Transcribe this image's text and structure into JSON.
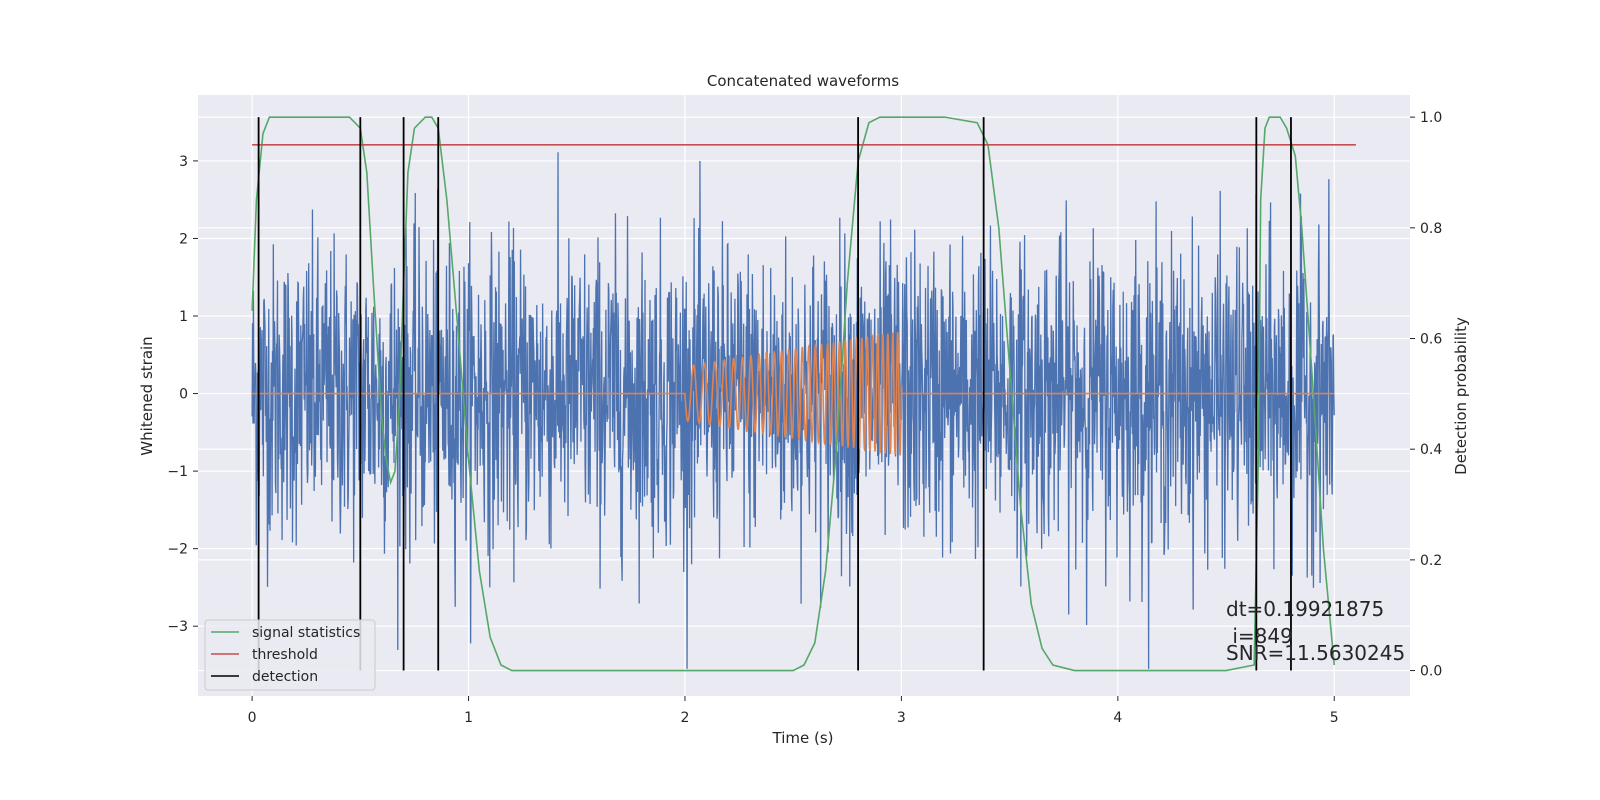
{
  "chart_data": {
    "type": "line",
    "title": "Concatenated waveforms",
    "xlabel": "Time (s)",
    "ylabel": "Whitened strain",
    "y2label": "Detection probability",
    "xlim": [
      -0.25,
      5.35
    ],
    "ylim": [
      -3.9,
      3.85
    ],
    "y2lim": [
      -0.046,
      1.04
    ],
    "x_ticks": [
      0,
      1,
      2,
      3,
      4,
      5
    ],
    "x_tick_labels": [
      "0",
      "1",
      "2",
      "3",
      "4",
      "5"
    ],
    "y_ticks": [
      -3,
      -2,
      -1,
      0,
      1,
      2,
      3
    ],
    "y_tick_labels": [
      "−3",
      "−2",
      "−1",
      "0",
      "1",
      "2",
      "3"
    ],
    "y2_ticks": [
      0.0,
      0.2,
      0.4,
      0.6,
      0.8,
      1.0
    ],
    "y2_tick_labels": [
      "0.0",
      "0.2",
      "0.4",
      "0.6",
      "0.8",
      "1.0"
    ],
    "grid": true,
    "legend_position": "bottom-left",
    "noise": {
      "t_start": 0,
      "t_end": 5,
      "sigma": 0.95,
      "peak_max": 3.5,
      "peak_min": -3.55
    },
    "injection": {
      "t_start": 2.0,
      "t_end": 3.0,
      "amp_start": 0.35,
      "amp_end": 0.8,
      "freq_start": 18,
      "freq_end": 45
    },
    "series": [
      {
        "name": "signal statistics",
        "axis": "right",
        "x": [
          0,
          0.02,
          0.05,
          0.08,
          0.1,
          0.2,
          0.3,
          0.45,
          0.5,
          0.53,
          0.56,
          0.6,
          0.62,
          0.64,
          0.66,
          0.68,
          0.7,
          0.72,
          0.75,
          0.8,
          0.83,
          0.86,
          0.9,
          0.95,
          1.0,
          1.05,
          1.1,
          1.15,
          1.2,
          1.5,
          2.0,
          2.5,
          2.55,
          2.6,
          2.65,
          2.7,
          2.75,
          2.8,
          2.85,
          2.9,
          3.0,
          3.2,
          3.35,
          3.4,
          3.45,
          3.5,
          3.55,
          3.6,
          3.65,
          3.7,
          3.8,
          4.0,
          4.5,
          4.63,
          4.65,
          4.66,
          4.68,
          4.7,
          4.75,
          4.78,
          4.82,
          4.85,
          4.9,
          4.95,
          5.0
        ],
        "y": [
          0.65,
          0.85,
          0.97,
          1.0,
          1.0,
          1.0,
          1.0,
          1.0,
          0.98,
          0.9,
          0.7,
          0.45,
          0.38,
          0.34,
          0.36,
          0.48,
          0.7,
          0.9,
          0.98,
          1.0,
          1.0,
          0.98,
          0.85,
          0.62,
          0.38,
          0.18,
          0.06,
          0.01,
          0.0,
          0.0,
          0.0,
          0.0,
          0.01,
          0.05,
          0.18,
          0.4,
          0.7,
          0.92,
          0.99,
          1.0,
          1.0,
          1.0,
          0.99,
          0.95,
          0.8,
          0.55,
          0.3,
          0.12,
          0.04,
          0.01,
          0.0,
          0.0,
          0.0,
          0.01,
          0.4,
          0.85,
          0.98,
          1.0,
          1.0,
          0.98,
          0.93,
          0.8,
          0.52,
          0.22,
          0.01
        ],
        "color": "#55a868"
      },
      {
        "name": "threshold",
        "axis": "right",
        "x": [
          0,
          5.1
        ],
        "y": [
          0.95,
          0.95
        ],
        "color": "#c44e52"
      },
      {
        "name": "detection",
        "axis": "right",
        "x": [
          0.03,
          0.5,
          0.7,
          0.86,
          2.8,
          3.38,
          4.64,
          4.8
        ],
        "color": "#000000"
      }
    ],
    "annotations": [
      "dt=0.19921875",
      " i=849",
      "SNR=11.5630245"
    ],
    "colors": {
      "noise": "#4c72b0",
      "injection": "#dd8452",
      "background": "#eaeaf2",
      "grid": "#ffffff"
    }
  }
}
